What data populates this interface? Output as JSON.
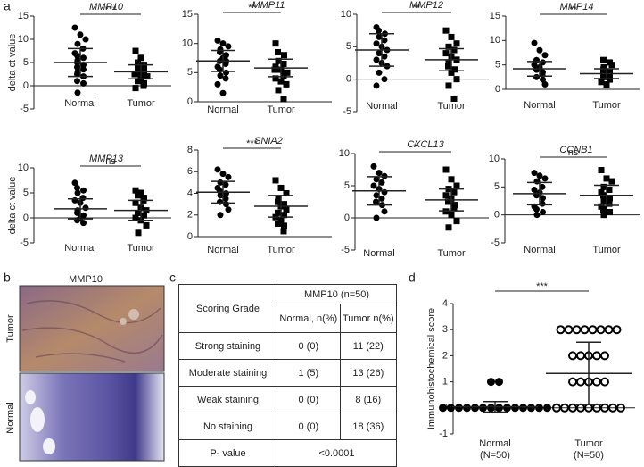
{
  "panel_labels": [
    "a",
    "b",
    "c",
    "d"
  ],
  "image": {
    "title": "MMP10",
    "labels": [
      "Tumor",
      "Normal"
    ]
  },
  "table": {
    "header": [
      "Scoring Grade",
      "MMP10 (n=50)"
    ],
    "subheader": [
      "Normal, n(%)",
      "Tumor n(%)"
    ],
    "rows": [
      [
        "Strong staining",
        "0 (0)",
        "11 (22)"
      ],
      [
        "Moderate staining",
        "1 (5)",
        "13 (26)"
      ],
      [
        "Weak staining",
        "0 (0)",
        "8 (16)"
      ],
      [
        "No staining",
        "0 (0)",
        "18 (36)"
      ]
    ],
    "p_row": [
      "P- value",
      "<0.0001"
    ]
  },
  "chart_data": [
    {
      "type": "strip",
      "title": "MMP10",
      "ylabel": "delta ct value",
      "categories": [
        "Normal",
        "Tumor"
      ],
      "significance": "***",
      "ylim": [
        -5,
        15
      ],
      "yticks": [
        -5,
        0,
        5,
        10,
        15
      ],
      "series": [
        {
          "marker": "circle",
          "color": "#000000",
          "values": [
            12.5,
            11,
            10,
            9,
            8,
            7,
            6.5,
            6,
            5.5,
            5,
            4.5,
            4,
            3.5,
            3,
            2.5,
            2,
            1,
            0.5,
            -1.5
          ],
          "mean": 5,
          "sd": 3
        },
        {
          "marker": "square",
          "color": "#000000",
          "values": [
            7.5,
            6,
            5,
            4.5,
            4,
            3.5,
            3,
            3,
            2.5,
            2,
            2,
            1.5,
            1,
            0.5,
            0,
            -0.5
          ],
          "mean": 3,
          "sd": 1.5
        }
      ]
    },
    {
      "type": "strip",
      "title": "MMP11",
      "categories": [
        "Normal",
        "Tumor"
      ],
      "significance": "**",
      "ylim": [
        0,
        15
      ],
      "yticks": [
        0,
        5,
        10,
        15
      ],
      "series": [
        {
          "marker": "circle",
          "color": "#000000",
          "values": [
            10.5,
            10,
            9.5,
            9,
            8.5,
            8,
            7.5,
            7,
            7,
            6.5,
            6,
            5.5,
            5,
            4.5,
            4,
            3,
            1.5
          ],
          "mean": 7,
          "sd": 1.8
        },
        {
          "marker": "square",
          "color": "#000000",
          "values": [
            10,
            8.5,
            8,
            7,
            6.5,
            6,
            5.5,
            5.5,
            5,
            4.5,
            4,
            3.5,
            3,
            2,
            0.5
          ],
          "mean": 5.8,
          "sd": 1.5
        }
      ]
    },
    {
      "type": "strip",
      "title": "MMP12",
      "categories": [
        "Normal",
        "Tumor"
      ],
      "significance": "**",
      "ylim": [
        -5,
        10
      ],
      "yticks": [
        -5,
        0,
        5,
        10
      ],
      "series": [
        {
          "marker": "circle",
          "color": "#000000",
          "values": [
            8,
            7.5,
            7,
            6.5,
            6,
            5.5,
            5,
            4.5,
            4,
            3.5,
            3,
            2.5,
            2,
            1,
            0,
            -1
          ],
          "mean": 4.5,
          "sd": 2.5
        },
        {
          "marker": "square",
          "color": "#000000",
          "values": [
            7.5,
            6.5,
            5.5,
            5,
            4.5,
            4,
            3.5,
            3,
            2.5,
            2,
            1.5,
            1,
            0,
            -1,
            -3
          ],
          "mean": 3,
          "sd": 1.7
        }
      ]
    },
    {
      "type": "strip",
      "title": "MMP14",
      "categories": [
        "Normal",
        "Tumor"
      ],
      "significance": "**",
      "ylim": [
        0,
        15
      ],
      "yticks": [
        0,
        5,
        10,
        15
      ],
      "series": [
        {
          "marker": "circle",
          "color": "#000000",
          "values": [
            9.5,
            8,
            7,
            6,
            5.5,
            5,
            4.5,
            4,
            3.5,
            3,
            2.5,
            2,
            1
          ],
          "mean": 4.2,
          "sd": 1.5
        },
        {
          "marker": "square",
          "color": "#000000",
          "values": [
            6,
            5.5,
            5,
            4.5,
            4,
            3.5,
            3,
            3,
            2.5,
            2,
            1.5,
            1
          ],
          "mean": 3.2,
          "sd": 1
        }
      ]
    },
    {
      "type": "strip",
      "title": "MMP13",
      "ylabel": "delta ct value",
      "categories": [
        "Normal",
        "Tumor"
      ],
      "significance": "ns",
      "ylim": [
        -5,
        10
      ],
      "yticks": [
        -5,
        0,
        5,
        10
      ],
      "series": [
        {
          "marker": "circle",
          "color": "#000000",
          "values": [
            7,
            6,
            5.5,
            5,
            4,
            3.5,
            3,
            2,
            1.5,
            1,
            0.5,
            0,
            -0.5,
            -1
          ],
          "mean": 1.8,
          "sd": 2
        },
        {
          "marker": "square",
          "color": "#000000",
          "values": [
            5.5,
            5,
            4.5,
            4,
            3.5,
            3,
            2,
            1.5,
            1,
            0.5,
            0,
            -0.5,
            -1.5,
            -3
          ],
          "mean": 1.5,
          "sd": 2
        }
      ]
    },
    {
      "type": "strip",
      "title": "SNIA2",
      "categories": [
        "Normal",
        "Tumor"
      ],
      "significance": "***",
      "ylim": [
        0,
        8
      ],
      "yticks": [
        0,
        2,
        4,
        6,
        8
      ],
      "series": [
        {
          "marker": "circle",
          "color": "#000000",
          "values": [
            6.2,
            5.8,
            5.5,
            5,
            4.8,
            4.5,
            4.2,
            4,
            3.8,
            3.5,
            3.2,
            3,
            2.5,
            2
          ],
          "mean": 4.1,
          "sd": 1
        },
        {
          "marker": "square",
          "color": "#000000",
          "values": [
            5.2,
            4.5,
            4,
            3.5,
            3.2,
            3,
            2.8,
            2.5,
            2.2,
            2,
            1.8,
            1.5,
            1.2,
            1,
            0.5
          ],
          "mean": 2.8,
          "sd": 1
        }
      ]
    },
    {
      "type": "strip",
      "title": "CXCL13",
      "categories": [
        "Normal",
        "Tumor"
      ],
      "significance": "*",
      "ylim": [
        -5,
        10
      ],
      "yticks": [
        -5,
        0,
        5,
        10
      ],
      "series": [
        {
          "marker": "circle",
          "color": "#000000",
          "values": [
            8,
            7,
            6.5,
            6,
            5.5,
            5,
            4.5,
            4,
            3.5,
            3,
            2.5,
            2,
            1,
            0
          ],
          "mean": 4.2,
          "sd": 2.2
        },
        {
          "marker": "square",
          "color": "#000000",
          "values": [
            7.5,
            6,
            5,
            4.5,
            4,
            3.5,
            3,
            2.5,
            2,
            1.5,
            1,
            0.5,
            -0.5,
            -1.5
          ],
          "mean": 2.8,
          "sd": 1.7
        }
      ]
    },
    {
      "type": "strip",
      "title": "CCNB1",
      "categories": [
        "Normal",
        "Tumor"
      ],
      "significance": "ns",
      "ylim": [
        -5,
        10
      ],
      "yticks": [
        -5,
        0,
        5,
        10
      ],
      "series": [
        {
          "marker": "circle",
          "color": "#000000",
          "values": [
            7.5,
            7,
            6.5,
            6,
            5,
            4.5,
            4,
            3.5,
            3,
            2,
            1.5,
            1,
            0.5,
            0
          ],
          "mean": 3.8,
          "sd": 2
        },
        {
          "marker": "square",
          "color": "#000000",
          "values": [
            8,
            6.5,
            6,
            5,
            4.5,
            4,
            3.5,
            3,
            2.5,
            2,
            1.5,
            1,
            0.5,
            0
          ],
          "mean": 3.5,
          "sd": 1.8
        }
      ]
    },
    {
      "type": "strip",
      "ylabel": "Immunohistochemical score",
      "categories": [
        "Normal",
        "Tumor"
      ],
      "category_notes": [
        "(N=50)",
        "(N=50)"
      ],
      "significance": "***",
      "ylim": [
        -1,
        4
      ],
      "yticks": [
        -1,
        0,
        1,
        2,
        3,
        4
      ],
      "series": [
        {
          "marker": "circle",
          "color": "#000000",
          "values": [
            1,
            1,
            0,
            0,
            0,
            0,
            0,
            0,
            0,
            0,
            0,
            0,
            0,
            0,
            0,
            0
          ],
          "mean": 0.04,
          "sd": 0.2
        },
        {
          "marker": "ring",
          "color": "#000000",
          "values": [
            3,
            3,
            3,
            3,
            3,
            3,
            3,
            3,
            2,
            2,
            2,
            2,
            2,
            1,
            1,
            1,
            1,
            1,
            0,
            0,
            0,
            0,
            0,
            0,
            0,
            0,
            0
          ],
          "mean": 1.32,
          "sd": 1.2
        }
      ]
    }
  ]
}
